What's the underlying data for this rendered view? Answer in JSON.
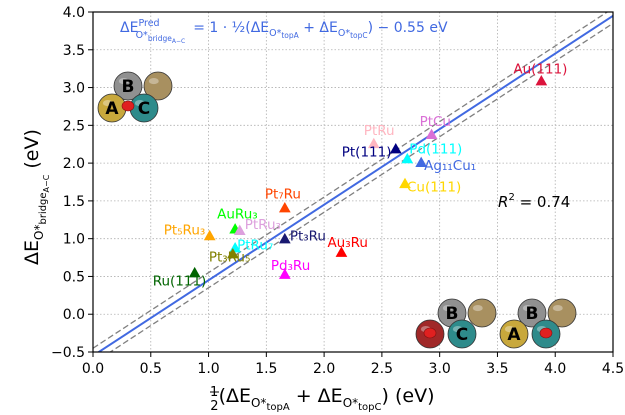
{
  "chart_data": {
    "type": "scatter",
    "xlabel_html": "½(ΔE<sub>O*topA</sub> + ΔE<sub>O*topC</sub>) (eV)",
    "xlabel": "1/2(ΔE_{O*topA} + ΔE_{O*topC}) (eV)",
    "ylabel": "ΔE_{O*bridge_{A-C}} (eV)",
    "xlim": [
      0.0,
      4.5
    ],
    "ylim": [
      -0.5,
      4.0
    ],
    "xticks": [
      "0.0",
      "0.5",
      "1.0",
      "1.5",
      "2.0",
      "2.5",
      "3.0",
      "3.5",
      "4.0",
      "4.5"
    ],
    "yticks": [
      "−0.5",
      "0.0",
      "0.5",
      "1.0",
      "1.5",
      "2.0",
      "2.5",
      "3.0",
      "3.5",
      "4.0"
    ],
    "grid": true,
    "equation": "ΔE^{Pred}_{O*bridge_{A-C}} = 1 · ½(ΔE_{O*topA} + ΔE_{O*topC}) − 0.55 eV",
    "r2_text": "R² = 0.74",
    "fit_line": {
      "slope": 1.0,
      "intercept": -0.55,
      "color": "#4169e1",
      "band": 0.1
    },
    "points": [
      {
        "label": "Au(111)",
        "x": 3.88,
        "y": 3.08,
        "color": "#dc143c"
      },
      {
        "label": "PtCu",
        "x": 2.93,
        "y": 2.37,
        "color": "#da70d6"
      },
      {
        "label": "PtRu",
        "x": 2.43,
        "y": 2.25,
        "color": "#ffb6c1"
      },
      {
        "label": "Pd(111)",
        "x": 2.72,
        "y": 2.05,
        "color": "#00ffff"
      },
      {
        "label": "Pt(111)",
        "x": 2.62,
        "y": 2.18,
        "color": "#000080"
      },
      {
        "label": "Ag₁₁Cu₁",
        "x": 2.84,
        "y": 2.0,
        "color": "#4169e1"
      },
      {
        "label": "Cu(111)",
        "x": 2.7,
        "y": 1.72,
        "color": "#ffd700"
      },
      {
        "label": "Pt₇Ru",
        "x": 1.66,
        "y": 1.4,
        "color": "#ff4500"
      },
      {
        "label": "AuRu₃",
        "x": 1.23,
        "y": 1.12,
        "color": "#00ff00"
      },
      {
        "label": "PtRu₃",
        "x": 1.27,
        "y": 1.1,
        "color": "#dda0dd"
      },
      {
        "label": "Pt₅Ru₃",
        "x": 1.01,
        "y": 1.03,
        "color": "#ffa500"
      },
      {
        "label": "Pt₃Ru",
        "x": 1.66,
        "y": 0.99,
        "color": "#191970"
      },
      {
        "label": "PtRu₇",
        "x": 1.23,
        "y": 0.87,
        "color": "#00ffff"
      },
      {
        "label": "Au₃Ru",
        "x": 2.15,
        "y": 0.81,
        "color": "#ff0000"
      },
      {
        "label": "Pt₃Ru₅",
        "x": 1.21,
        "y": 0.79,
        "color": "#808000"
      },
      {
        "label": "Ru(111)",
        "x": 0.88,
        "y": 0.54,
        "color": "#006400"
      },
      {
        "label": "Pd₃Ru",
        "x": 1.66,
        "y": 0.52,
        "color": "#ff00ff"
      }
    ],
    "insets": [
      {
        "sites": [
          "B",
          "A",
          "C"
        ],
        "marked_site": "AC bridge"
      },
      {
        "sites": [
          "B",
          "C"
        ],
        "marked_site": "top C"
      },
      {
        "sites": [
          "B",
          "A"
        ],
        "marked_site": "top A"
      }
    ]
  }
}
